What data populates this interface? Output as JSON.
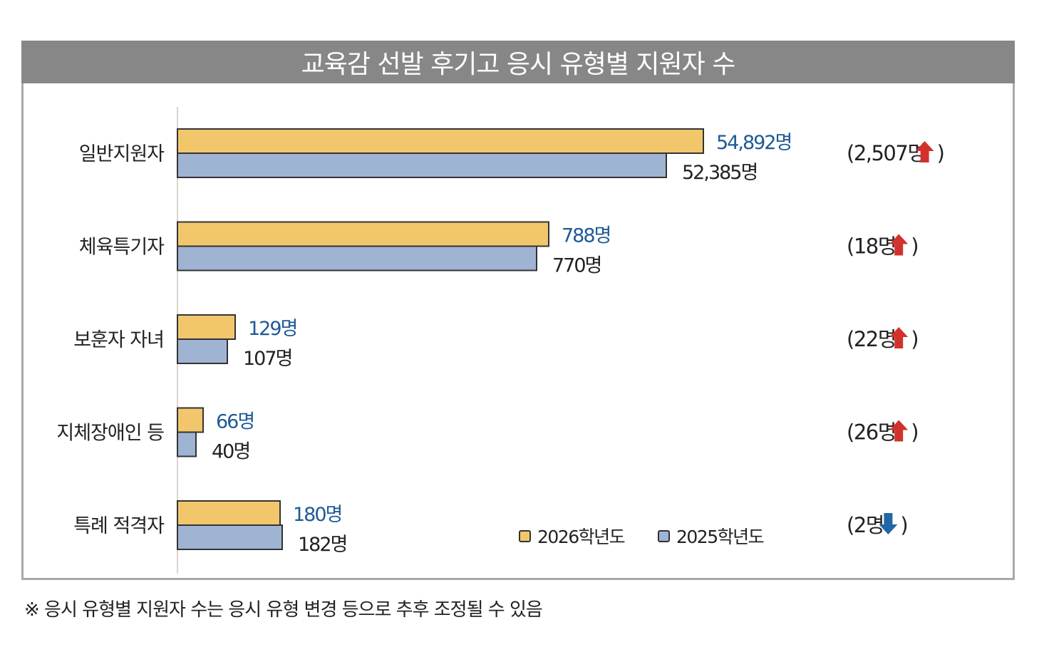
{
  "chart_data": {
    "type": "bar",
    "orientation": "horizontal",
    "title": "교육감 선발 후기고 응시 유형별 지원자 수",
    "categories": [
      "일반지원자",
      "체육특기자",
      "보훈자 자녀",
      "지체장애인 등",
      "특례 적격자"
    ],
    "series": [
      {
        "name": "2026학년도",
        "color": "#f2c76c",
        "label_color": "#1f5a97",
        "values": [
          54892,
          788,
          129,
          66,
          180
        ],
        "labels": [
          "54,892명",
          "788명",
          "129명",
          "66명",
          "180명"
        ]
      },
      {
        "name": "2025학년도",
        "color": "#9fb4d3",
        "label_color": "#222222",
        "values": [
          52385,
          770,
          107,
          40,
          182
        ],
        "labels": [
          "52,385명",
          "770명",
          "107명",
          "40명",
          "182명"
        ]
      }
    ],
    "changes": [
      {
        "text": "(2,507명",
        "close": ")",
        "direction": "up"
      },
      {
        "text": "(18명",
        "close": ")",
        "direction": "up"
      },
      {
        "text": "(22명",
        "close": ")",
        "direction": "up"
      },
      {
        "text": "(26명",
        "close": ")",
        "direction": "up"
      },
      {
        "text": "(2명",
        "close": ")",
        "direction": "down"
      }
    ],
    "up_color": "#d2322b",
    "down_color": "#2266a6",
    "legend": [
      "2026학년도",
      "2025학년도"
    ],
    "legend_position": "bottom-right",
    "xlabel": "",
    "ylabel": "",
    "grid": false
  },
  "footnote": "※ 응시 유형별 지원자 수는 응시 유형 변경 등으로 추후 조정될 수 있음"
}
